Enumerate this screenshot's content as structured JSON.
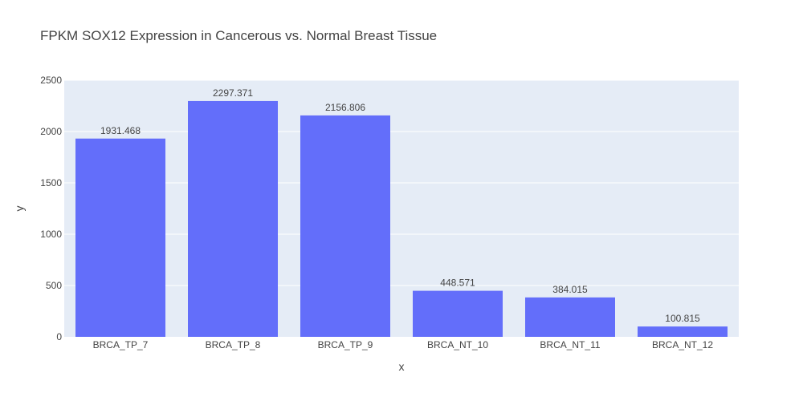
{
  "chart_data": {
    "type": "bar",
    "title": "FPKM SOX12 Expression in Cancerous vs. Normal Breast Tissue",
    "xlabel": "x",
    "ylabel": "y",
    "categories": [
      "BRCA_TP_7",
      "BRCA_TP_8",
      "BRCA_TP_9",
      "BRCA_NT_10",
      "BRCA_NT_11",
      "BRCA_NT_12"
    ],
    "values": [
      1931.468,
      2297.371,
      2156.806,
      448.571,
      384.015,
      100.815
    ],
    "value_labels": [
      "1931.468",
      "2297.371",
      "2156.806",
      "448.571",
      "384.015",
      "100.815"
    ],
    "ylim": [
      0,
      2500
    ],
    "yticks": [
      0,
      500,
      1000,
      1500,
      2000,
      2500
    ],
    "ytick_labels": [
      "0",
      "500",
      "1000",
      "1500",
      "2000",
      "2500"
    ],
    "grid": true,
    "colors": {
      "bar": "#636efa",
      "plot_bg": "#e5ecf6",
      "grid": "#ffffff"
    }
  }
}
